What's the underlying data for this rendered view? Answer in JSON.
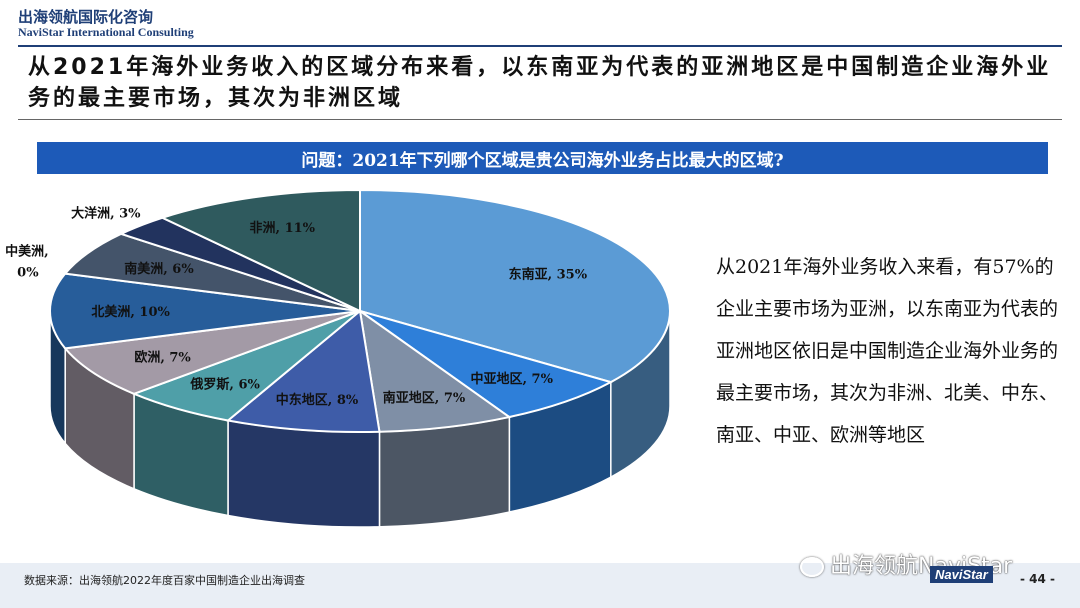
{
  "header": {
    "brand_cn": "出海领航国际化咨询",
    "brand_en": "NaviStar International Consulting"
  },
  "headline": "从2021年海外业务收入的区域分布来看，以东南亚为代表的亚洲地区是中国制造企业海外业务的最主要市场，其次为非洲区域",
  "question": "问题：2021年下列哪个区域是贵公司海外业务占比最大的区域?",
  "side_text": "从2021年海外业务收入来看，有57%的企业主要市场为亚洲，以东南亚为代表的亚洲地区依旧是中国制造企业海外业务的最主要市场，其次为非洲、北美、中东、南亚、中亚、欧洲等地区",
  "chart_data": {
    "type": "pie",
    "style": "3d",
    "slices": [
      {
        "label": "东南亚, 35%",
        "value": 35,
        "color": "#5b9bd5"
      },
      {
        "label": "中亚地区, 7%",
        "value": 7,
        "color": "#2e7fd9"
      },
      {
        "label": "南亚地区, 7%",
        "value": 7,
        "color": "#7f8fa6"
      },
      {
        "label": "中东地区, 8%",
        "value": 8,
        "color": "#3e5ca8"
      },
      {
        "label": "俄罗斯, 6%",
        "value": 6,
        "color": "#4f9fa8"
      },
      {
        "label": "欧洲, 7%",
        "value": 7,
        "color": "#a39aa6"
      },
      {
        "label": "北美洲, 10%",
        "value": 10,
        "color": "#275d9a"
      },
      {
        "label": "中美洲, 0%",
        "value": 0,
        "color": "#3b5f80"
      },
      {
        "label": "南美洲, 6%",
        "value": 6,
        "color": "#44546a"
      },
      {
        "label": "大洋洲, 3%",
        "value": 3,
        "color": "#22335e"
      },
      {
        "label": "非洲, 11%",
        "value": 11,
        "color": "#2f5a5e"
      }
    ]
  },
  "footer": {
    "source": "数据来源：出海领航2022年度百家中国制造企业出海调查",
    "watermark": "出海领航NaviStar",
    "logo": "NaviStar",
    "page": "- 44 -"
  }
}
